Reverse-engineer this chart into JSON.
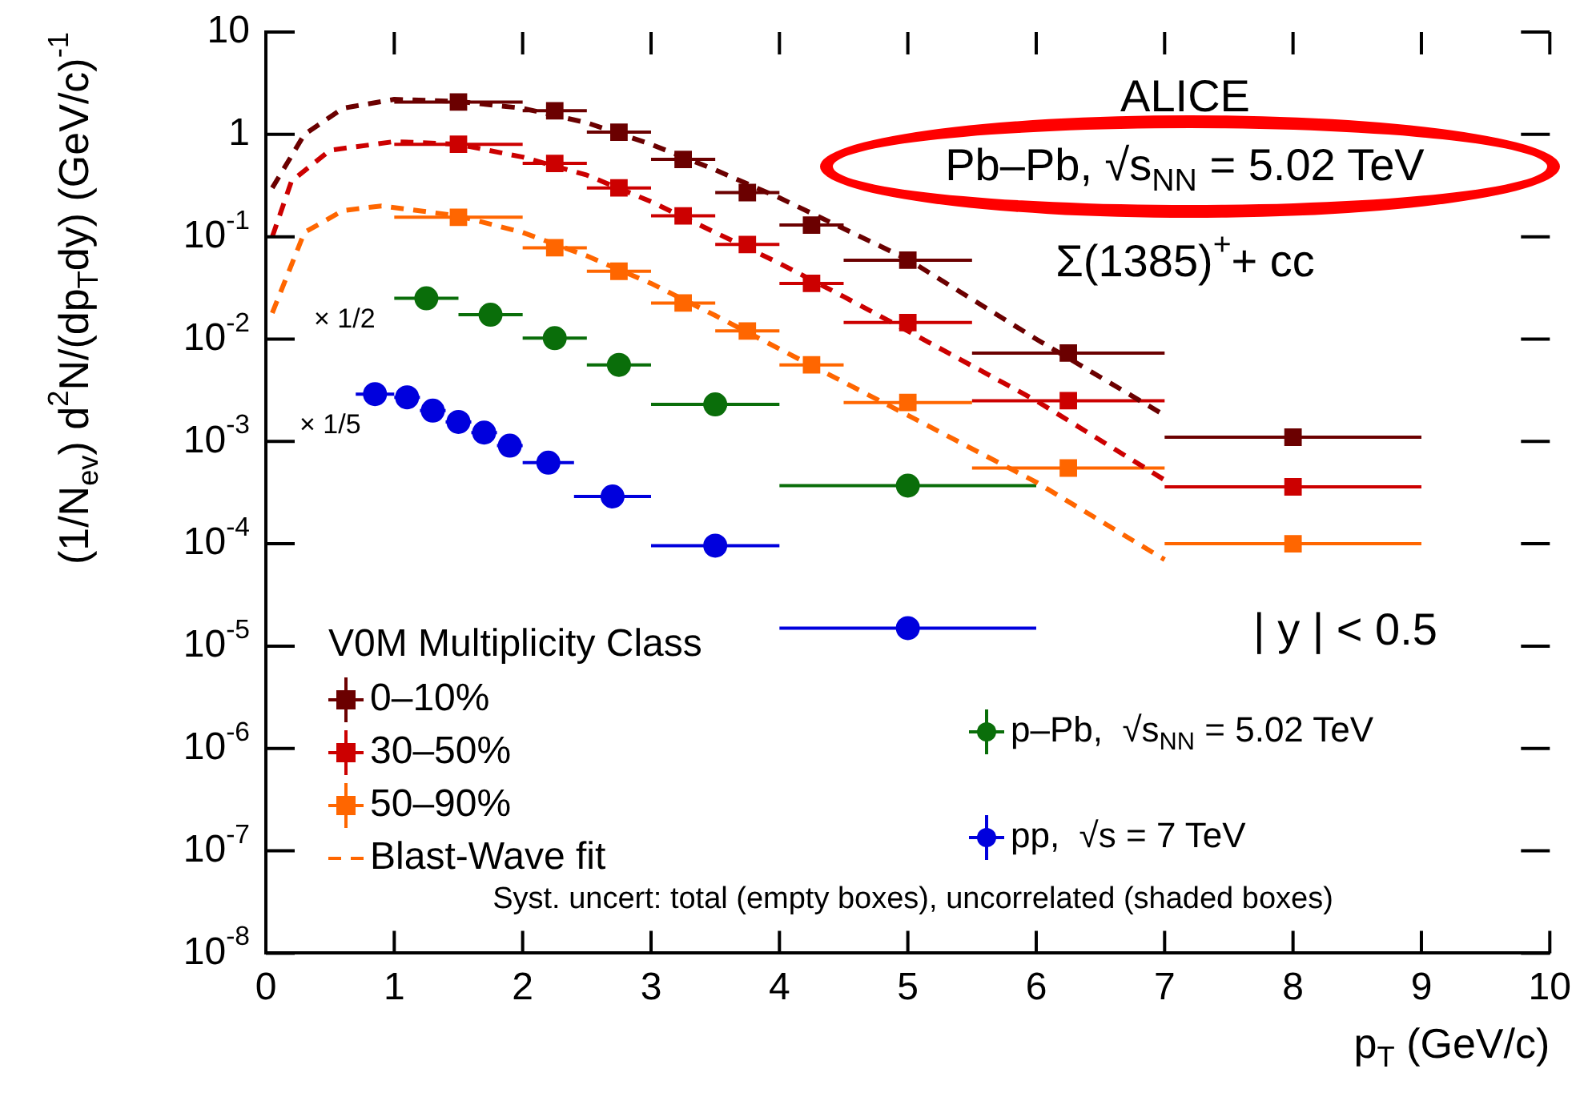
{
  "chart_data": {
    "type": "scatter",
    "xlabel": "p$_{T}$ (GeV/c)",
    "ylabel": "(1/N$_{ev}$) d$^{2}$N/(dp$_{T}$dy) (GeV/c)$^{-1}$",
    "legend_title": "V0M Multiplicity Class",
    "log": "y",
    "grid": false,
    "legend": "bottom left",
    "xlim": [
      0,
      10
    ],
    "xticks": [
      0,
      1,
      2,
      3,
      4,
      5,
      6,
      7,
      8,
      9,
      10
    ],
    "ylim": [
      1e-08,
      10
    ],
    "yticks": [
      {
        "value": 1e-08,
        "label": "10$^{-8}$"
      },
      {
        "value": 1e-07,
        "label": "10$^{-7}$"
      },
      {
        "value": 1e-06,
        "label": "10$^{-6}$"
      },
      {
        "value": 1e-05,
        "label": "10$^{-5}$"
      },
      {
        "value": 0.0001,
        "label": "10$^{-4}$"
      },
      {
        "value": 0.001,
        "label": "10$^{-3}$"
      },
      {
        "value": 0.01,
        "label": "10$^{-2}$"
      },
      {
        "value": 0.1,
        "label": "10$^{-1}$"
      },
      1,
      10
    ],
    "annotations": [
      "ALICE",
      "Pb–Pb, √s$_{NN}$ = 5.02 TeV",
      "Σ(1385)$^{+}$+ cc",
      "| y | < 0.5",
      "Syst. uncert: total (empty boxes), uncorrelated (shaded boxes)",
      "× 1/2",
      "× 1/5"
    ],
    "series": [
      {
        "name": "0–10%",
        "marker": "square",
        "color": "#6b0000",
        "x": [
          1.5,
          2.25,
          2.75,
          3.25,
          3.75,
          4.25,
          5,
          6.25,
          8
        ],
        "values": [
          2.07,
          1.7,
          1.05,
          0.57,
          0.27,
          0.13,
          0.059,
          0.0073,
          0.0011
        ],
        "errors": [
          0.3,
          0.25,
          0.16,
          0.085,
          0.04,
          0.02,
          0.009,
          0.0011,
          0.00017
        ],
        "xerrors": [
          0.5,
          0.25,
          0.25,
          0.25,
          0.25,
          0.25,
          0.5,
          0.75,
          1
        ]
      },
      {
        "name": "30–50%",
        "marker": "square",
        "color": "#cc0000",
        "x": [
          1.5,
          2.25,
          2.75,
          3.25,
          3.75,
          4.25,
          5,
          6.25,
          8
        ],
        "values": [
          0.8,
          0.52,
          0.3,
          0.16,
          0.084,
          0.035,
          0.0145,
          0.0025,
          0.00036
        ],
        "errors": [
          0.12,
          0.08,
          0.045,
          0.024,
          0.013,
          0.005,
          0.0022,
          0.0004,
          5e-05
        ],
        "xerrors": [
          0.5,
          0.25,
          0.25,
          0.25,
          0.25,
          0.25,
          0.5,
          0.75,
          1
        ]
      },
      {
        "name": "50–90%",
        "marker": "square",
        "color": "#ff6600",
        "x": [
          1.5,
          2.25,
          2.75,
          3.25,
          3.75,
          4.25,
          5,
          6.25,
          8
        ],
        "values": [
          0.155,
          0.078,
          0.046,
          0.0225,
          0.012,
          0.0056,
          0.0024,
          0.00055,
          0.0001
        ],
        "errors": [
          0.023,
          0.012,
          0.007,
          0.0034,
          0.0018,
          0.0008,
          0.00036,
          8e-05,
          1.5e-05
        ],
        "xerrors": [
          0.5,
          0.25,
          0.25,
          0.25,
          0.25,
          0.25,
          0.5,
          0.75,
          1
        ]
      },
      {
        "type": "line",
        "line_style": "dashed",
        "color": "#6b0000",
        "x": [
          0.05,
          0.3,
          0.6,
          1,
          1.5,
          2,
          2.5,
          3,
          3.5,
          4,
          4.5,
          5,
          6,
          7
        ],
        "values": [
          0.3,
          1.0,
          1.8,
          2.2,
          2.1,
          1.8,
          1.3,
          0.8,
          0.45,
          0.24,
          0.12,
          0.06,
          0.01,
          0.0018
        ]
      },
      {
        "type": "line",
        "line_style": "dashed",
        "color": "#cc0000",
        "x": [
          0.05,
          0.2,
          0.5,
          1,
          1.5,
          2,
          2.5,
          3,
          3.5,
          4,
          4.5,
          5,
          6,
          7
        ],
        "values": [
          0.1,
          0.35,
          0.7,
          0.85,
          0.8,
          0.6,
          0.4,
          0.22,
          0.11,
          0.055,
          0.026,
          0.012,
          0.0025,
          0.00042
        ]
      },
      {
        "name": "Blast-Wave fit",
        "type": "line",
        "line_style": "dashed",
        "color": "#ff6600",
        "x": [
          0.05,
          0.3,
          0.6,
          0.9,
          1.5,
          2,
          2.5,
          3,
          3.5,
          4,
          4.5,
          5,
          6,
          7
        ],
        "values": [
          0.018,
          0.11,
          0.18,
          0.2,
          0.16,
          0.11,
          0.065,
          0.035,
          0.017,
          0.008,
          0.0038,
          0.0018,
          0.0004,
          7e-05
        ]
      },
      {
        "name": "p–Pb,  √s$_{NN}$ = 5.02 TeV",
        "marker": "circle",
        "color": "#0a6e0a",
        "x": [
          1.25,
          1.75,
          2.25,
          2.75,
          3.5,
          5
        ],
        "values": [
          0.025,
          0.0173,
          0.0102,
          0.0056,
          0.0023,
          0.00037
        ],
        "errors": [
          0.004,
          0.0026,
          0.0015,
          0.0008,
          0.00035,
          6e-05
        ],
        "xerrors": [
          0.25,
          0.25,
          0.25,
          0.25,
          0.5,
          1
        ]
      },
      {
        "name": "pp,  √s = 7 TeV",
        "marker": "circle",
        "color": "#0000dd",
        "x": [
          0.85,
          1.1,
          1.3,
          1.5,
          1.7,
          1.9,
          2.2,
          2.7,
          3.5,
          5
        ],
        "values": [
          0.0029,
          0.0027,
          0.002,
          0.00155,
          0.00122,
          0.00091,
          0.00062,
          0.00029,
          9.6e-05,
          1.5e-05
        ],
        "errors": [
          0.0004,
          0.0004,
          0.0003,
          0.00023,
          0.00018,
          0.00014,
          9e-05,
          4e-05,
          1.4e-05,
          2.3e-06
        ],
        "xerrors": [
          0.15,
          0.1,
          0.1,
          0.1,
          0.1,
          0.1,
          0.2,
          0.3,
          0.5,
          1
        ]
      }
    ]
  }
}
